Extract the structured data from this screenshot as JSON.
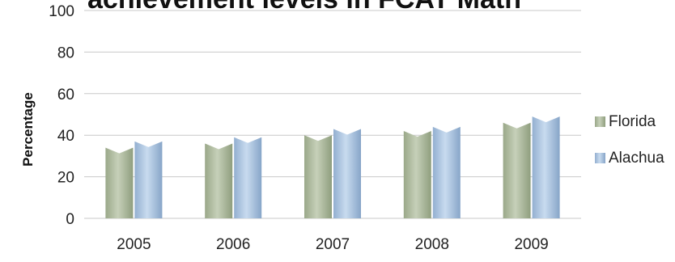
{
  "chart_data": {
    "type": "bar",
    "title": "achievement levels in FCAT Math",
    "ylabel": "Percentage",
    "xlabel": "",
    "categories": [
      "2005",
      "2006",
      "2007",
      "2008",
      "2009"
    ],
    "ylim": [
      0,
      100
    ],
    "yticks": [
      0,
      20,
      40,
      60,
      80,
      100
    ],
    "grid": true,
    "legend_position": "right",
    "series": [
      {
        "name": "Florida",
        "values": [
          34,
          36,
          40,
          42,
          46
        ],
        "color": "#a9b79a"
      },
      {
        "name": "Alachua",
        "values": [
          37,
          39,
          43,
          44,
          49
        ],
        "color": "#a9c2df"
      }
    ]
  }
}
